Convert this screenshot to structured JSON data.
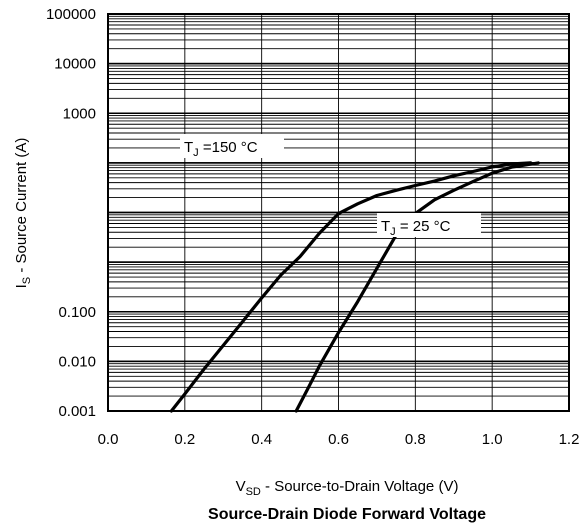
{
  "chart_data": {
    "type": "line",
    "title": "Source-Drain Diode Forward Voltage",
    "xlabel": {
      "main": "V",
      "sub": "SD",
      "rest": " - Source-to-Drain Voltage (V)"
    },
    "ylabel": {
      "main": "I",
      "sub": "S",
      "rest": " - Source Current (A)"
    },
    "xlim": [
      0.0,
      1.2
    ],
    "ylim": [
      0.001,
      100000
    ],
    "yscale": "log",
    "grid": true,
    "x_ticks": [
      "0.0",
      "0.2",
      "0.4",
      "0.6",
      "0.8",
      "1.0",
      "1.2"
    ],
    "y_ticks": [
      "0.001",
      "0.010",
      "0.100",
      "1000",
      "10000",
      "100000"
    ],
    "series": [
      {
        "name": {
          "main": "T",
          "sub": "J",
          "rest": " =150 °C"
        },
        "x": [
          0.165,
          0.2,
          0.25,
          0.3,
          0.35,
          0.4,
          0.45,
          0.5,
          0.55,
          0.6,
          0.65,
          0.7,
          0.75,
          0.8,
          0.85,
          0.9,
          0.95,
          1.0,
          1.05,
          1.1
        ],
        "y": [
          0.001,
          0.0022,
          0.007,
          0.021,
          0.063,
          0.19,
          0.55,
          1.3,
          3.8,
          9.5,
          15,
          22,
          28,
          35,
          43,
          55,
          67,
          83,
          95,
          100
        ]
      },
      {
        "name": {
          "main": "T",
          "sub": "J",
          "rest": " = 25 °C"
        },
        "x": [
          0.49,
          0.52,
          0.55,
          0.6,
          0.65,
          0.7,
          0.75,
          0.8,
          0.85,
          0.9,
          0.95,
          1.0,
          1.05,
          1.12
        ],
        "y": [
          0.001,
          0.0028,
          0.008,
          0.038,
          0.16,
          0.75,
          3.5,
          9.5,
          18,
          28,
          42,
          62,
          82,
          100
        ]
      }
    ]
  }
}
